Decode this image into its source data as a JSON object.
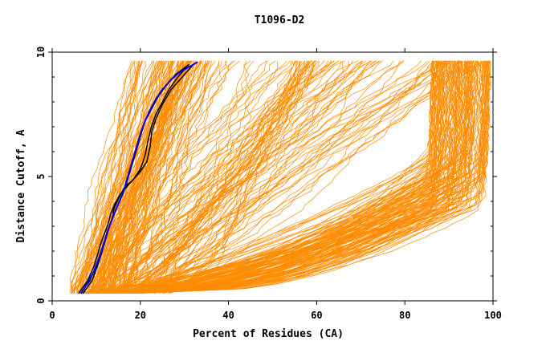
{
  "chart_data": {
    "type": "line",
    "title": "T1096-D2",
    "xlabel": "Percent of Residues (CA)",
    "ylabel": "Distance Cutoff, A",
    "xlim": [
      0,
      100
    ],
    "ylim": [
      0,
      10
    ],
    "x_ticks": [
      0,
      20,
      40,
      60,
      80,
      100
    ],
    "y_ticks": [
      0,
      5,
      10
    ],
    "grid": false,
    "colors": {
      "background_models": "#ff8c00",
      "highlight_black": "#000000",
      "highlight_blue": "#0000ff"
    },
    "highlight_series": [
      {
        "color": "#000000",
        "points": [
          [
            6.5,
            0.3
          ],
          [
            8.5,
            0.8
          ],
          [
            10,
            1.4
          ],
          [
            11.5,
            2.2
          ],
          [
            12.5,
            2.8
          ],
          [
            13.5,
            3.2
          ],
          [
            14,
            3.7
          ],
          [
            15,
            4.1
          ],
          [
            16.5,
            4.6
          ],
          [
            18,
            4.8
          ],
          [
            20,
            5.2
          ],
          [
            21.5,
            5.6
          ],
          [
            22.2,
            6.2
          ],
          [
            22.6,
            6.8
          ],
          [
            23.5,
            7.3
          ],
          [
            25,
            7.9
          ],
          [
            27,
            8.5
          ],
          [
            29.5,
            9.0
          ],
          [
            32,
            9.5
          ]
        ]
      },
      {
        "color": "#000000",
        "points": [
          [
            6,
            0.3
          ],
          [
            8,
            0.8
          ],
          [
            9.5,
            1.4
          ],
          [
            11,
            2.3
          ],
          [
            12.5,
            3.0
          ],
          [
            13.3,
            3.5
          ],
          [
            14.2,
            3.9
          ],
          [
            15.5,
            4.3
          ],
          [
            17,
            4.6
          ],
          [
            18.5,
            4.9
          ],
          [
            20,
            5.3
          ],
          [
            21,
            5.8
          ],
          [
            21.7,
            6.4
          ],
          [
            22.5,
            7.0
          ],
          [
            23.5,
            7.5
          ],
          [
            25,
            8.0
          ],
          [
            26.5,
            8.5
          ],
          [
            28.5,
            9.0
          ],
          [
            31,
            9.5
          ]
        ]
      },
      {
        "color": "#000000",
        "points": [
          [
            7,
            0.3
          ],
          [
            9,
            0.8
          ],
          [
            10.5,
            1.5
          ],
          [
            12,
            2.4
          ],
          [
            13,
            3.0
          ],
          [
            14.3,
            3.6
          ],
          [
            15.3,
            4.0
          ],
          [
            16,
            4.3
          ],
          [
            17,
            4.8
          ],
          [
            18,
            5.4
          ],
          [
            19,
            6.0
          ],
          [
            20,
            6.6
          ],
          [
            21,
            7.2
          ],
          [
            22.5,
            7.7
          ],
          [
            24,
            8.2
          ],
          [
            26,
            8.7
          ],
          [
            28,
            9.1
          ],
          [
            31,
            9.5
          ]
        ]
      },
      {
        "color": "#0000ff",
        "points": [
          [
            6.5,
            0.3
          ],
          [
            8,
            0.7
          ],
          [
            9.5,
            1.2
          ],
          [
            11,
            1.9
          ],
          [
            12.2,
            2.6
          ],
          [
            13.2,
            3.1
          ],
          [
            14.5,
            3.7
          ],
          [
            16,
            4.3
          ],
          [
            17,
            4.9
          ],
          [
            18,
            5.5
          ],
          [
            19,
            6.1
          ],
          [
            20,
            6.7
          ],
          [
            21,
            7.2
          ],
          [
            22,
            7.6
          ],
          [
            23.5,
            8.1
          ],
          [
            25,
            8.5
          ],
          [
            27,
            8.9
          ],
          [
            29,
            9.2
          ],
          [
            33,
            9.6
          ]
        ]
      }
    ]
  }
}
